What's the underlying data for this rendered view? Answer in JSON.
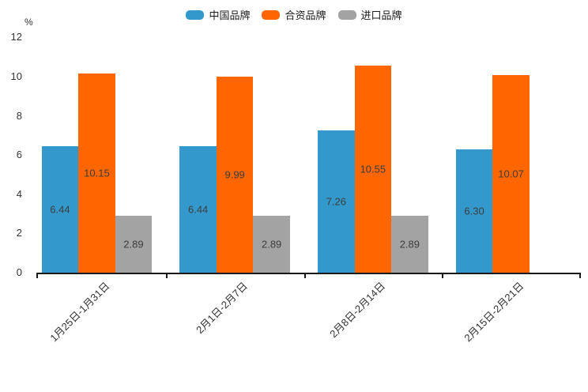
{
  "chart_data": {
    "type": "bar",
    "title": "",
    "unit_label": "%",
    "categories": [
      "1月25日-1月31日",
      "2月1日-2月7日",
      "2月8日-2月14日",
      "2月15日-2月21日"
    ],
    "series": [
      {
        "id": "china-brand",
        "name": "中国品牌",
        "color": "#3399CC",
        "values": [
          6.44,
          6.44,
          7.26,
          6.3
        ]
      },
      {
        "id": "joint-venture-brand",
        "name": "合资品牌",
        "color": "#FF6600",
        "values": [
          10.15,
          9.99,
          10.55,
          10.07
        ]
      },
      {
        "id": "import-brand",
        "name": "进口品牌",
        "color": "#A3A3A3",
        "values": [
          2.89,
          2.89,
          2.89,
          null
        ]
      }
    ],
    "value_labels_decimals": 2,
    "y_axis": {
      "min": 0,
      "max": 12,
      "ticks": [
        0,
        2,
        4,
        6,
        8,
        10,
        12
      ]
    },
    "x_labels_rotation_deg": 45,
    "legend_position": "top",
    "grid": false,
    "colors": {
      "axis": "#1A1A1A",
      "tick_label": "#333333",
      "value_label": "#3D3D3D",
      "background": "#FFFFFF"
    }
  }
}
